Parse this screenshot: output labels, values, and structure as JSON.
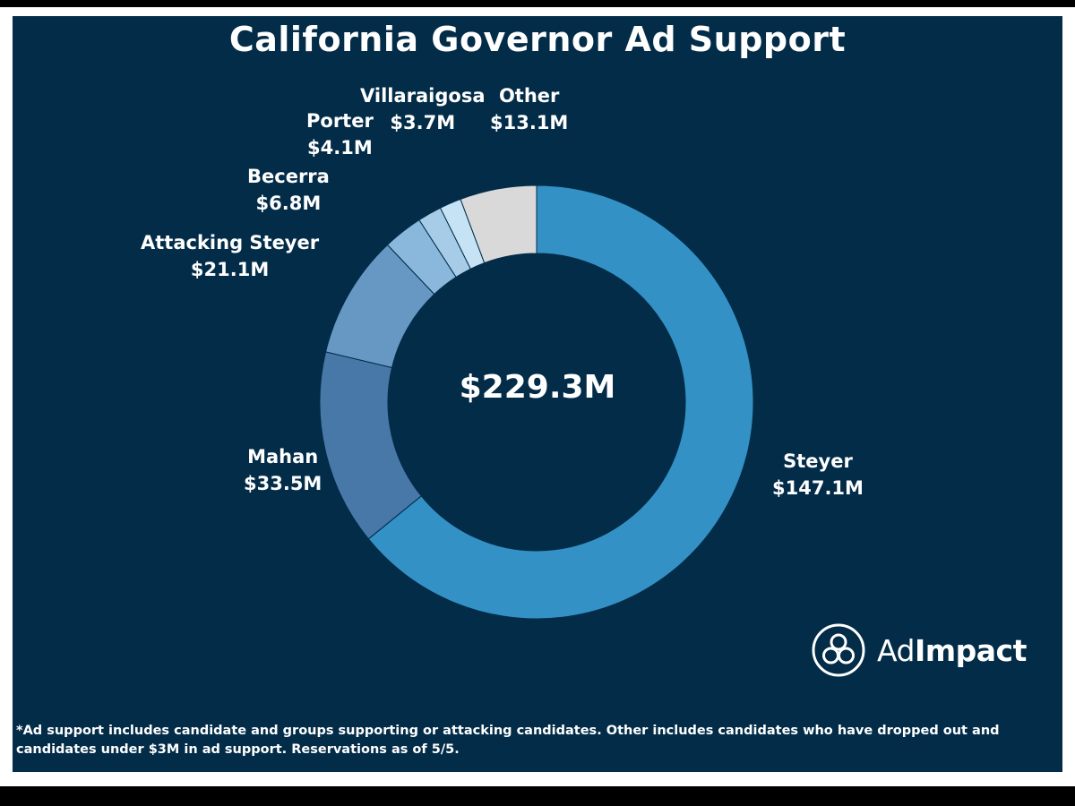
{
  "title": "California Governor Ad Support",
  "center_total": "$229.3M",
  "brand": {
    "name_light": "Ad",
    "name_bold": "Impact"
  },
  "footnote": "*Ad support includes candidate and groups supporting or attacking candidates. Other includes candidates who have dropped out and candidates under $3M in ad support. Reservations as of 5/5.",
  "colors": {
    "background": "#022c48",
    "text": "#ffffff"
  },
  "chart_data": {
    "type": "pie",
    "style": "donut",
    "unit": "$M",
    "total": 229.3,
    "slices": [
      {
        "label": "Steyer",
        "value": 147.1,
        "display": "$147.1M",
        "color": "#3391c6"
      },
      {
        "label": "Mahan",
        "value": 33.5,
        "display": "$33.5M",
        "color": "#4878a8"
      },
      {
        "label": "Attacking Steyer",
        "value": 21.1,
        "display": "$21.1M",
        "color": "#6797c3"
      },
      {
        "label": "Becerra",
        "value": 6.8,
        "display": "$6.8M",
        "color": "#8ab8dc"
      },
      {
        "label": "Porter",
        "value": 4.1,
        "display": "$4.1M",
        "color": "#a7cce8"
      },
      {
        "label": "Villaraigosa",
        "value": 3.7,
        "display": "$3.7M",
        "color": "#c6e3f5"
      },
      {
        "label": "Other",
        "value": 13.1,
        "display": "$13.1M",
        "color": "#d9d9d9"
      }
    ]
  }
}
